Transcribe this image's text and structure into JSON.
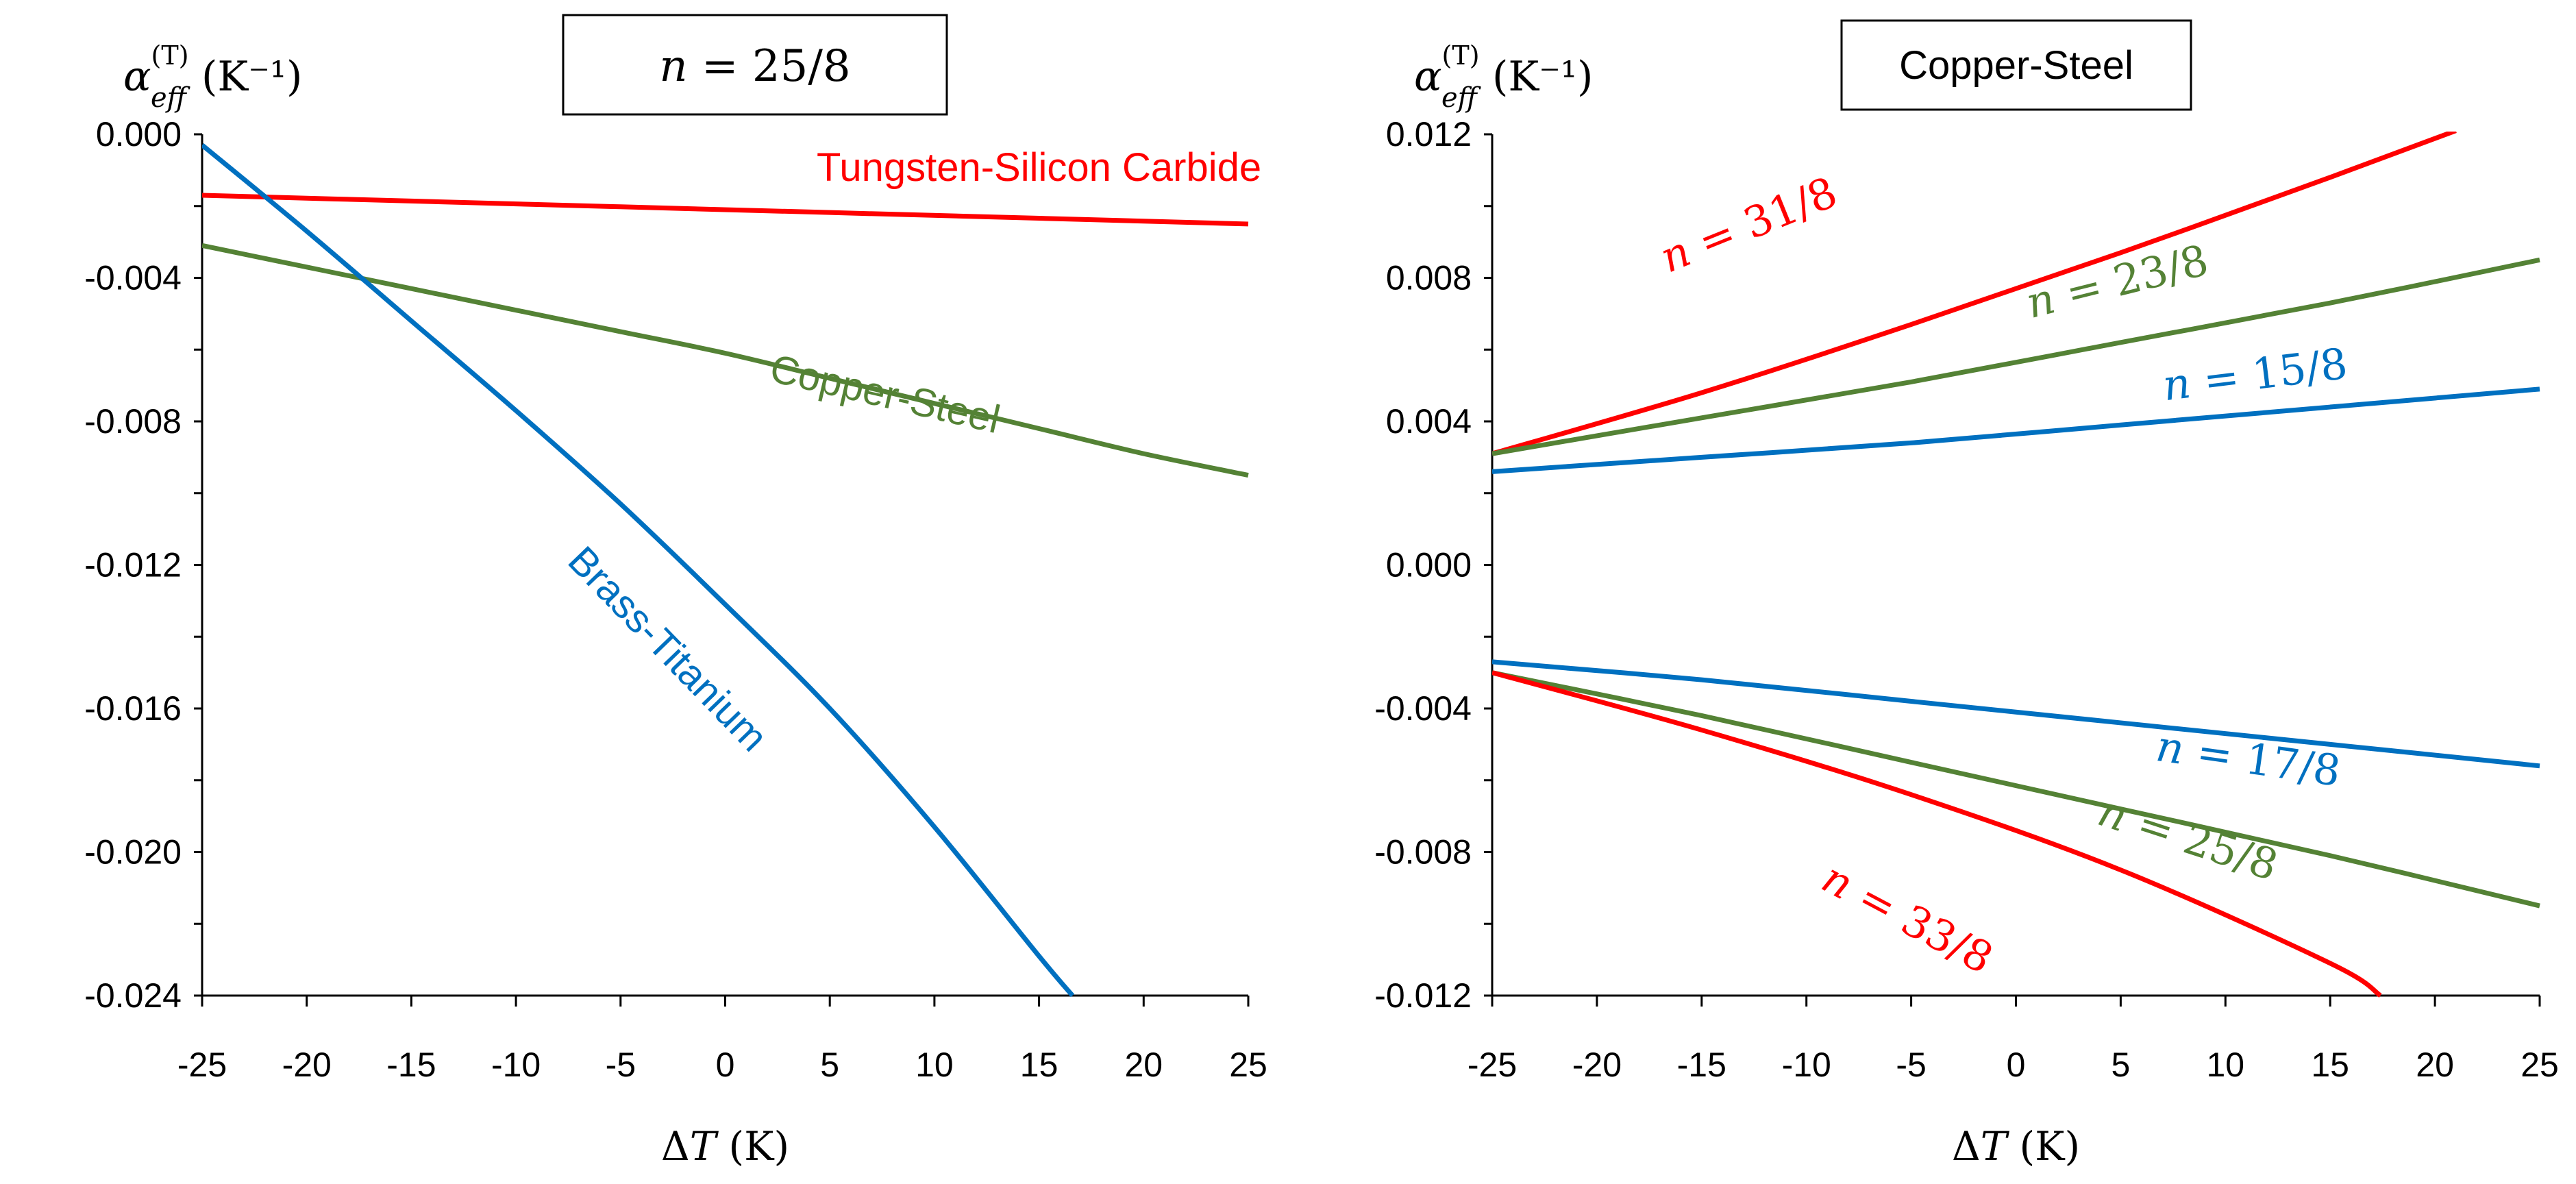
{
  "chart_data": [
    {
      "type": "line",
      "title": "n = 25/8",
      "title_math": {
        "var": "n",
        "rest": " = 25/8"
      },
      "ylabel": {
        "base": "α",
        "sup": "(T)",
        "sub": "eff",
        "unit": "(K⁻¹)"
      },
      "xlabel": {
        "prefix": "Δ",
        "var": "T",
        "unit": "(K)"
      },
      "xlim": [
        -25,
        25
      ],
      "ylim": [
        -0.024,
        0.0
      ],
      "xticks": [
        -25,
        -20,
        -15,
        -10,
        -5,
        0,
        5,
        10,
        15,
        20,
        25
      ],
      "xtick_labels": [
        "-25",
        "-20",
        "-15",
        "-10",
        "-5",
        "0",
        "5",
        "10",
        "15",
        "20",
        "25"
      ],
      "yticks": [
        0.0,
        -0.004,
        -0.008,
        -0.012,
        -0.016,
        -0.02,
        -0.024
      ],
      "ytick_labels": [
        "0.000",
        "-0.004",
        "-0.008",
        "-0.012",
        "-0.016",
        "-0.020",
        "-0.024"
      ],
      "series": [
        {
          "name": "Tungsten-Silicon Carbide",
          "color": "#ff0000",
          "x": [
            -25,
            -15,
            -5,
            5,
            15,
            25
          ],
          "y": [
            -0.0017,
            -0.00186,
            -0.00202,
            -0.00218,
            -0.00234,
            -0.0025
          ]
        },
        {
          "name": "Copper-Steel",
          "color": "#548235",
          "x": [
            -25,
            -20,
            -15,
            -10,
            -5,
            0,
            5,
            10,
            15,
            20,
            25
          ],
          "y": [
            -0.0031,
            -0.0037,
            -0.0043,
            -0.0049,
            -0.0055,
            -0.0061,
            -0.0068,
            -0.0075,
            -0.0082,
            -0.0089,
            -0.0095
          ]
        },
        {
          "name": "Brass-Titanium",
          "color": "#0070c0",
          "x": [
            -25,
            -20,
            -15,
            -10,
            -5,
            0,
            5,
            10,
            15,
            16.6
          ],
          "y": [
            -0.0003,
            -0.0027,
            -0.0052,
            -0.0077,
            -0.0103,
            -0.0131,
            -0.016,
            -0.0193,
            -0.0229,
            -0.024
          ]
        }
      ],
      "annotations": [
        {
          "text": "Tungsten-Silicon Carbide",
          "color": "#ff0000",
          "x": 15,
          "y": -0.0013,
          "angle": 0
        },
        {
          "text": "Copper-Steel",
          "color": "#548235",
          "x": 7.5,
          "y": -0.0076,
          "angle": 13
        },
        {
          "text": "Brass-Titanium",
          "color": "#0070c0",
          "x": -3.2,
          "y": -0.0146,
          "angle": 46
        }
      ]
    },
    {
      "type": "line",
      "title": "Copper-Steel",
      "ylabel": {
        "base": "α",
        "sup": "(T)",
        "sub": "eff",
        "unit": "(K⁻¹)"
      },
      "xlabel": {
        "prefix": "Δ",
        "var": "T",
        "unit": "(K)"
      },
      "xlim": [
        -25,
        25
      ],
      "ylim": [
        -0.012,
        0.012
      ],
      "xticks": [
        -25,
        -20,
        -15,
        -10,
        -5,
        0,
        5,
        10,
        15,
        20,
        25
      ],
      "xtick_labels": [
        "-25",
        "-20",
        "-15",
        "-10",
        "-5",
        "0",
        "5",
        "10",
        "15",
        "20",
        "25"
      ],
      "yticks": [
        0.012,
        0.008,
        0.004,
        0.0,
        -0.004,
        -0.008,
        -0.012
      ],
      "ytick_labels": [
        "0.012",
        "0.008",
        "0.004",
        "0.000",
        "-0.004",
        "-0.008",
        "-0.012"
      ],
      "series": [
        {
          "name": "n = 31/8",
          "color": "#ff0000",
          "x": [
            -25,
            -15,
            -5,
            5,
            15,
            21
          ],
          "y": [
            0.0031,
            0.0048,
            0.0067,
            0.0087,
            0.0108,
            0.0121
          ]
        },
        {
          "name": "n = 23/8",
          "color": "#548235",
          "x": [
            -25,
            -15,
            -5,
            5,
            15,
            25
          ],
          "y": [
            0.0031,
            0.0041,
            0.0051,
            0.0062,
            0.0073,
            0.0085
          ]
        },
        {
          "name": "n = 15/8",
          "color": "#0070c0",
          "x": [
            -25,
            -15,
            -5,
            5,
            15,
            25
          ],
          "y": [
            0.0026,
            0.003,
            0.0034,
            0.0039,
            0.0044,
            0.0049
          ]
        },
        {
          "name": "n = 17/8",
          "color": "#0070c0",
          "x": [
            -25,
            -15,
            -5,
            5,
            15,
            25
          ],
          "y": [
            -0.0027,
            -0.0032,
            -0.0038,
            -0.0044,
            -0.005,
            -0.0056
          ]
        },
        {
          "name": "n = 25/8",
          "color": "#548235",
          "x": [
            -25,
            -15,
            -5,
            5,
            15,
            25
          ],
          "y": [
            -0.003,
            -0.0042,
            -0.0055,
            -0.0068,
            -0.0081,
            -0.0095
          ]
        },
        {
          "name": "n = 33/8",
          "color": "#ff0000",
          "x": [
            -25,
            -15,
            -5,
            5,
            15,
            17.4
          ],
          "y": [
            -0.003,
            -0.0046,
            -0.0064,
            -0.0085,
            -0.0111,
            -0.012
          ]
        }
      ],
      "annotations": [
        {
          "text": "n = 31/8",
          "var": "n",
          "rest": " = 31/8",
          "color": "#ff0000",
          "x": -12.5,
          "y": 0.0091,
          "angle": -22
        },
        {
          "text": "n = 23/8",
          "var": "n",
          "rest": " = 23/8",
          "color": "#548235",
          "x": 5,
          "y": 0.0075,
          "angle": -14
        },
        {
          "text": "n = 15/8",
          "var": "n",
          "rest": " = 15/8",
          "color": "#0070c0",
          "x": 11.5,
          "y": 0.0049,
          "angle": -7
        },
        {
          "text": "n = 17/8",
          "var": "n",
          "rest": " = 17/8",
          "color": "#0070c0",
          "x": 11,
          "y": -0.0058,
          "angle": 8
        },
        {
          "text": "n = 25/8",
          "var": "n",
          "rest": " = 25/8",
          "color": "#548235",
          "x": 8,
          "y": -0.008,
          "angle": 18
        },
        {
          "text": "n = 33/8",
          "var": "n",
          "rest": " = 33/8",
          "color": "#ff0000",
          "x": -5.5,
          "y": -0.0102,
          "angle": 28
        }
      ]
    }
  ]
}
